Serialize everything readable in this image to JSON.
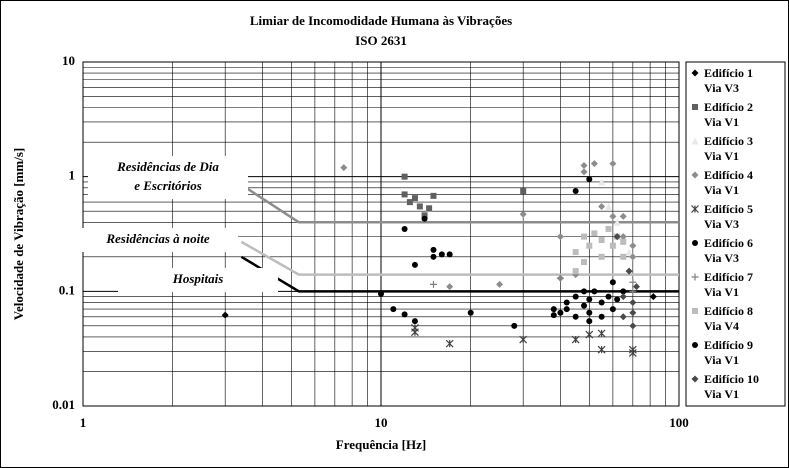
{
  "chart_data": {
    "type": "scatter",
    "title": [
      "Limiar de Incomodidade Humana às Vibrações",
      "ISO 2631"
    ],
    "xlabel": "Frequência  [Hz]",
    "ylabel": "Velocidade de Vibração [mm/s]",
    "xscale": "log",
    "yscale": "log",
    "grid": true,
    "minor_grid": true,
    "legend": "right",
    "xlim": [
      1,
      100
    ],
    "ylim": [
      0.01,
      10
    ],
    "xticks": [
      1,
      10,
      100
    ],
    "yticks": [
      0.01,
      0.1,
      1,
      10
    ],
    "lines": [
      {
        "label": [
          "Residências de Dia",
          "e Escritórios"
        ],
        "color": "#8c8c8c",
        "x": [
          3.4,
          5.3,
          100
        ],
        "values": [
          0.85,
          0.4,
          0.4
        ]
      },
      {
        "label": [
          "Residências à noite"
        ],
        "color": "#bdbdbd",
        "x": [
          3.4,
          5.3,
          100
        ],
        "values": [
          0.27,
          0.14,
          0.14
        ]
      },
      {
        "label": [
          "Hospitais"
        ],
        "color": "#000000",
        "x": [
          3.4,
          5.3,
          100
        ],
        "values": [
          0.2,
          0.1,
          0.1
        ]
      }
    ],
    "series": [
      {
        "name": "Edifício 1\nVia V3",
        "color": "#000000",
        "marker": "diamond",
        "x": [
          3.0,
          82
        ],
        "values": [
          0.062,
          0.09
        ]
      },
      {
        "name": "Edifício 2\nVia V1",
        "color": "#606060",
        "marker": "square",
        "x": [
          12,
          12,
          12.5,
          13,
          13.5,
          14,
          14.5,
          15,
          30
        ],
        "values": [
          1.0,
          0.7,
          0.6,
          0.65,
          0.55,
          0.46,
          0.53,
          0.68,
          0.75
        ]
      },
      {
        "name": "Edifício 3\nVia V1",
        "color": "#e8e8e8",
        "marker": "triangle",
        "x": [
          55,
          58,
          62,
          65,
          68
        ],
        "values": [
          0.9,
          0.55,
          0.4,
          0.3,
          0.22
        ]
      },
      {
        "name": "Edifício 4\nVia V1",
        "color": "#8c8c8c",
        "marker": "diamond",
        "x": [
          7.5,
          17,
          25,
          30,
          40,
          48,
          48,
          52,
          55,
          60,
          60,
          65,
          65,
          70,
          70,
          40,
          45
        ],
        "values": [
          1.2,
          0.11,
          0.115,
          0.47,
          0.3,
          1.1,
          1.25,
          1.3,
          0.55,
          1.3,
          0.45,
          0.45,
          0.3,
          0.25,
          0.2,
          0.13,
          0.14
        ]
      },
      {
        "name": "Edifício 5\nVia V3",
        "color": "#404040",
        "marker": "star",
        "x": [
          13,
          13,
          17,
          30,
          45,
          50,
          55,
          55,
          70,
          70
        ],
        "values": [
          0.048,
          0.044,
          0.035,
          0.038,
          0.038,
          0.042,
          0.043,
          0.031,
          0.031,
          0.029
        ]
      },
      {
        "name": "Edifício 6\nVia V3",
        "color": "#000000",
        "marker": "circle",
        "x": [
          12,
          13,
          14,
          15,
          15,
          16,
          17
        ],
        "values": [
          0.35,
          0.17,
          0.43,
          0.23,
          0.2,
          0.21,
          0.21
        ]
      },
      {
        "name": "Edifício 7\nVia V1",
        "color": "#808080",
        "marker": "plus",
        "x": [
          15,
          40,
          70,
          70
        ],
        "values": [
          0.115,
          0.13,
          0.12,
          0.1
        ]
      },
      {
        "name": "Edifício 8\nVia V4",
        "color": "#bcbcbc",
        "marker": "square",
        "x": [
          45,
          45,
          48,
          48,
          50,
          52,
          55,
          55,
          58,
          60,
          62,
          65,
          65
        ],
        "values": [
          0.15,
          0.22,
          0.18,
          0.3,
          0.25,
          0.32,
          0.2,
          0.28,
          0.35,
          0.25,
          0.3,
          0.2,
          0.27
        ]
      },
      {
        "name": "Edifício 9\nVia V1",
        "color": "#000000",
        "marker": "circle",
        "x": [
          10,
          11,
          12,
          13,
          20,
          28,
          38,
          38,
          40,
          42,
          42,
          45,
          45,
          48,
          48,
          50,
          50,
          50,
          52,
          55,
          55,
          58,
          60,
          60,
          62,
          65,
          45,
          50
        ],
        "values": [
          0.095,
          0.07,
          0.063,
          0.055,
          0.065,
          0.05,
          0.07,
          0.062,
          0.065,
          0.08,
          0.07,
          0.09,
          0.06,
          0.1,
          0.075,
          0.085,
          0.065,
          0.055,
          0.1,
          0.08,
          0.06,
          0.09,
          0.12,
          0.07,
          0.085,
          0.1,
          0.75,
          0.95
        ]
      },
      {
        "name": "Edifício 10\nVia V1",
        "color": "#4a4a4a",
        "marker": "diamond",
        "x": [
          62,
          65,
          65,
          68,
          70,
          70,
          70,
          72
        ],
        "values": [
          0.3,
          0.09,
          0.06,
          0.15,
          0.08,
          0.065,
          0.05,
          0.11
        ]
      }
    ]
  }
}
